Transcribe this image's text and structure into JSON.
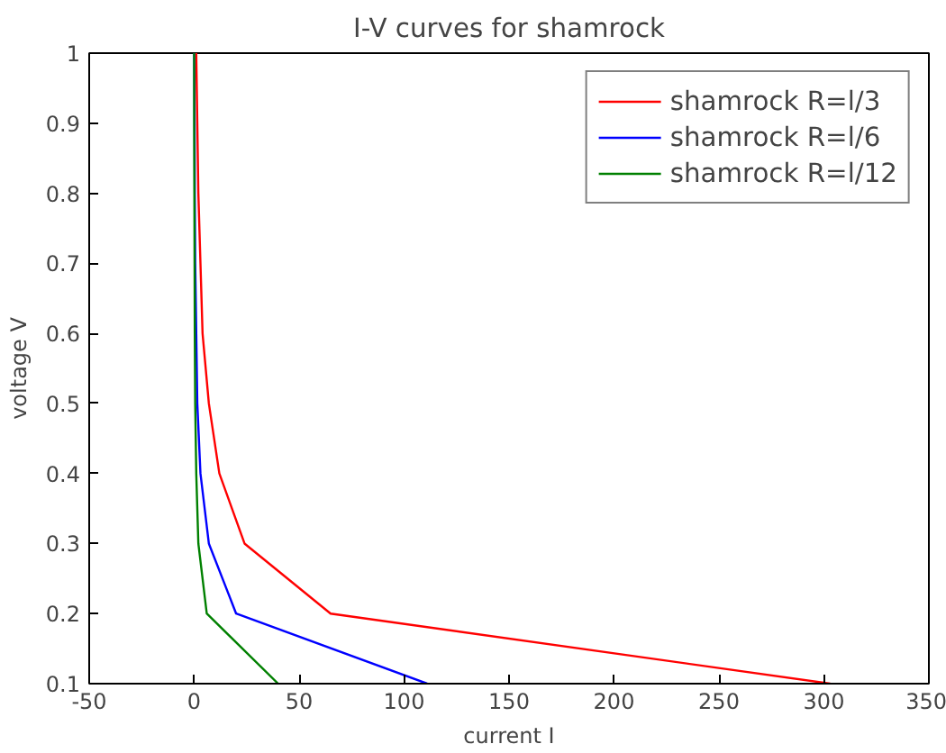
{
  "chart_data": {
    "type": "line",
    "title": "I-V curves for shamrock",
    "xlabel": "current I",
    "ylabel": "voltage V",
    "series": [
      {
        "name": "shamrock R=l/3",
        "color": "#ff0000",
        "x": [
          303,
          65,
          24,
          12,
          7,
          4,
          3,
          2,
          1.5,
          1
        ],
        "values": [
          0.1,
          0.2,
          0.3,
          0.4,
          0.5,
          0.6,
          0.7,
          0.8,
          0.9,
          1.0
        ]
      },
      {
        "name": "shamrock R=l/6",
        "color": "#0000ff",
        "x": [
          111,
          20,
          7,
          3,
          1.5,
          1,
          0.5,
          0.3,
          0.2,
          0
        ],
        "values": [
          0.1,
          0.2,
          0.3,
          0.4,
          0.5,
          0.6,
          0.7,
          0.8,
          0.9,
          1.0
        ]
      },
      {
        "name": "shamrock R=l/12",
        "color": "#008000",
        "x": [
          40,
          6,
          2,
          1,
          0.5,
          0.3,
          0.2,
          0.1,
          0,
          0
        ],
        "values": [
          0.1,
          0.2,
          0.3,
          0.4,
          0.5,
          0.6,
          0.7,
          0.8,
          0.9,
          1.0
        ]
      }
    ],
    "xlim": [
      -50,
      350
    ],
    "xticks": [
      -50,
      0,
      50,
      100,
      150,
      200,
      250,
      300,
      350
    ],
    "ylim": [
      0.1,
      1.0
    ],
    "yticks": [
      0.1,
      0.2,
      0.3,
      0.4,
      0.5,
      0.6,
      0.7,
      0.8,
      0.9,
      1.0
    ],
    "legend": "top right",
    "grid": false,
    "line_style": "solid",
    "marker": "none"
  }
}
